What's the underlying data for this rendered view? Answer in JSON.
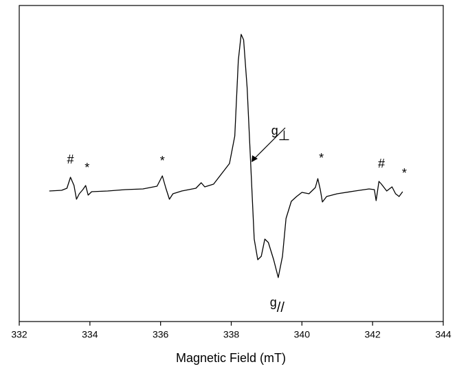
{
  "chart_data": {
    "type": "line",
    "x_label": "Magnetic Field (mT)",
    "x": [
      332.85,
      333.2,
      333.35,
      333.45,
      333.55,
      333.62,
      333.7,
      333.8,
      333.88,
      333.95,
      334.05,
      334.5,
      335.0,
      335.5,
      335.9,
      336.05,
      336.15,
      336.25,
      336.35,
      336.6,
      337.0,
      337.15,
      337.25,
      337.5,
      337.8,
      337.95,
      338.1,
      338.2,
      338.28,
      338.35,
      338.45,
      338.55,
      338.65,
      338.75,
      338.85,
      338.95,
      339.05,
      339.2,
      339.33,
      339.45,
      339.55,
      339.7,
      339.85,
      340.0,
      340.2,
      340.38,
      340.45,
      340.52,
      340.58,
      340.7,
      341.0,
      341.5,
      341.9,
      342.05,
      342.1,
      342.18,
      342.25,
      342.4,
      342.55,
      342.65,
      342.75,
      342.85
    ],
    "values": [
      0,
      1,
      4,
      20,
      8,
      -12,
      -4,
      2,
      8,
      -6,
      -1,
      0,
      2,
      3,
      7,
      22,
      4,
      -12,
      -4,
      0,
      4,
      12,
      6,
      10,
      30,
      40,
      80,
      190,
      228,
      220,
      150,
      40,
      -70,
      -100,
      -95,
      -70,
      -75,
      -100,
      -126,
      -95,
      -40,
      -15,
      -8,
      -2,
      -4,
      5,
      18,
      2,
      -16,
      -8,
      -4,
      0,
      3,
      2,
      -14,
      14,
      10,
      0,
      6,
      -4,
      -8,
      -1
    ],
    "color": "#000000",
    "xlim": [
      332,
      344
    ],
    "xticks": [
      332,
      334,
      336,
      338,
      340,
      342,
      344
    ],
    "ylim": [
      -190,
      270
    ],
    "annotations": [
      {
        "text": "#",
        "x": 333.45,
        "y": 40
      },
      {
        "text": "*",
        "x": 333.92,
        "y": 28
      },
      {
        "text": "*",
        "x": 336.05,
        "y": 38
      },
      {
        "text": "*",
        "x": 340.55,
        "y": 42
      },
      {
        "text": "#",
        "x": 342.25,
        "y": 34
      },
      {
        "text": "*",
        "x": 342.9,
        "y": 20
      },
      {
        "text": "g",
        "sub": "⊥",
        "x": 339.4,
        "y": 82
      },
      {
        "text": "g",
        "sub": "//",
        "x": 339.3,
        "y": -168
      }
    ]
  }
}
